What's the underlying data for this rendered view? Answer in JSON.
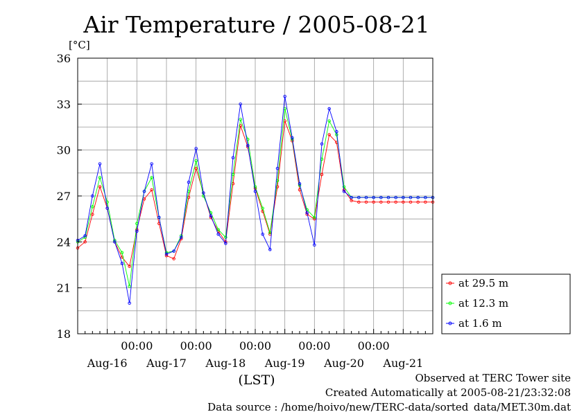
{
  "chart_data": {
    "type": "line",
    "title": "Air Temperature / 2005-08-21",
    "ylabel": "[°C]",
    "xlabel": "(LST)",
    "ylim": [
      18,
      36
    ],
    "yticks": [
      18,
      21,
      24,
      27,
      30,
      33,
      36
    ],
    "xlim": [
      0,
      144
    ],
    "time_tick_labels": [
      "00:00",
      "00:00",
      "00:00",
      "00:00",
      "00:00"
    ],
    "day_labels": [
      "Aug-16",
      "Aug-17",
      "Aug-18",
      "Aug-19",
      "Aug-20",
      "Aug-21"
    ],
    "grid": true,
    "legend_position": "right",
    "series": [
      {
        "name": "at 29.5 m",
        "color": "#ff0000",
        "x": [
          0,
          3,
          6,
          9,
          12,
          15,
          18,
          21,
          24,
          27,
          30,
          33,
          36,
          39,
          42,
          45,
          48,
          51,
          54,
          57,
          60,
          63,
          66,
          69,
          72,
          75,
          78,
          81,
          84,
          87,
          90,
          93,
          96,
          99,
          102,
          105,
          108,
          111,
          114,
          117,
          120,
          123,
          126,
          129,
          132,
          135,
          138,
          141,
          144
        ],
        "values": [
          23.6,
          24.0,
          25.8,
          27.6,
          26.2,
          24.0,
          23.0,
          22.4,
          24.8,
          26.8,
          27.4,
          25.2,
          23.1,
          22.9,
          24.2,
          26.9,
          28.8,
          27.2,
          25.6,
          24.7,
          24.0,
          27.8,
          31.6,
          30.2,
          27.5,
          26.0,
          24.5,
          27.6,
          31.9,
          30.6,
          27.4,
          25.8,
          25.5,
          28.4,
          31.0,
          30.5,
          27.4,
          26.7,
          26.6,
          26.6,
          26.6,
          26.6,
          26.6,
          26.6,
          26.6,
          26.6,
          26.6,
          26.6,
          26.6
        ]
      },
      {
        "name": "at 12.3 m",
        "color": "#00ff00",
        "x": [
          0,
          3,
          6,
          9,
          12,
          15,
          18,
          21,
          24,
          27,
          30,
          33,
          36,
          39,
          42,
          45,
          48,
          51,
          54,
          57,
          60,
          63,
          66,
          69,
          72,
          75,
          78,
          81,
          84,
          87,
          90,
          93,
          96,
          99,
          102,
          105,
          108,
          111,
          114,
          117,
          120,
          123,
          126,
          129,
          132,
          135,
          138,
          141,
          144
        ],
        "values": [
          24.0,
          24.3,
          26.3,
          28.2,
          26.6,
          24.1,
          23.3,
          21.1,
          25.2,
          27.3,
          28.2,
          25.6,
          23.3,
          23.4,
          24.4,
          27.3,
          29.3,
          27.0,
          25.9,
          24.8,
          24.3,
          28.4,
          32.0,
          30.7,
          27.6,
          26.2,
          24.6,
          28.0,
          32.7,
          30.7,
          27.7,
          26.1,
          25.6,
          29.4,
          31.9,
          31.0,
          27.6,
          26.9,
          26.9,
          26.9,
          26.9,
          26.9,
          26.9,
          26.9,
          26.9,
          26.9,
          26.9,
          26.9,
          26.9
        ]
      },
      {
        "name": "at 1.6 m",
        "color": "#0000ff",
        "x": [
          0,
          3,
          6,
          9,
          12,
          15,
          18,
          21,
          24,
          27,
          30,
          33,
          36,
          39,
          42,
          45,
          48,
          51,
          54,
          57,
          60,
          63,
          66,
          69,
          72,
          75,
          78,
          81,
          84,
          87,
          90,
          93,
          96,
          99,
          102,
          105,
          108,
          111,
          114,
          117,
          120,
          123,
          126,
          129,
          132,
          135,
          138,
          141,
          144
        ],
        "values": [
          24.1,
          24.4,
          27.0,
          29.1,
          26.2,
          24.0,
          22.6,
          20.0,
          24.7,
          27.3,
          29.1,
          25.6,
          23.2,
          23.4,
          24.3,
          27.9,
          30.1,
          27.2,
          25.7,
          24.5,
          23.9,
          29.5,
          33.0,
          30.3,
          27.3,
          24.5,
          23.5,
          28.8,
          33.5,
          30.8,
          27.8,
          25.9,
          23.8,
          30.4,
          32.7,
          31.2,
          27.3,
          26.9,
          26.9,
          26.9,
          26.9,
          26.9,
          26.9,
          26.9,
          26.9,
          26.9,
          26.9,
          26.9,
          26.9
        ]
      }
    ]
  },
  "footer": {
    "observed": "Observed at TERC Tower site",
    "created": "Created Automatically at 2005-08-21/23:32:08",
    "source": "Data source : /home/hoivo/new/TERC-data/sorted_data/MET.30m.dat"
  }
}
